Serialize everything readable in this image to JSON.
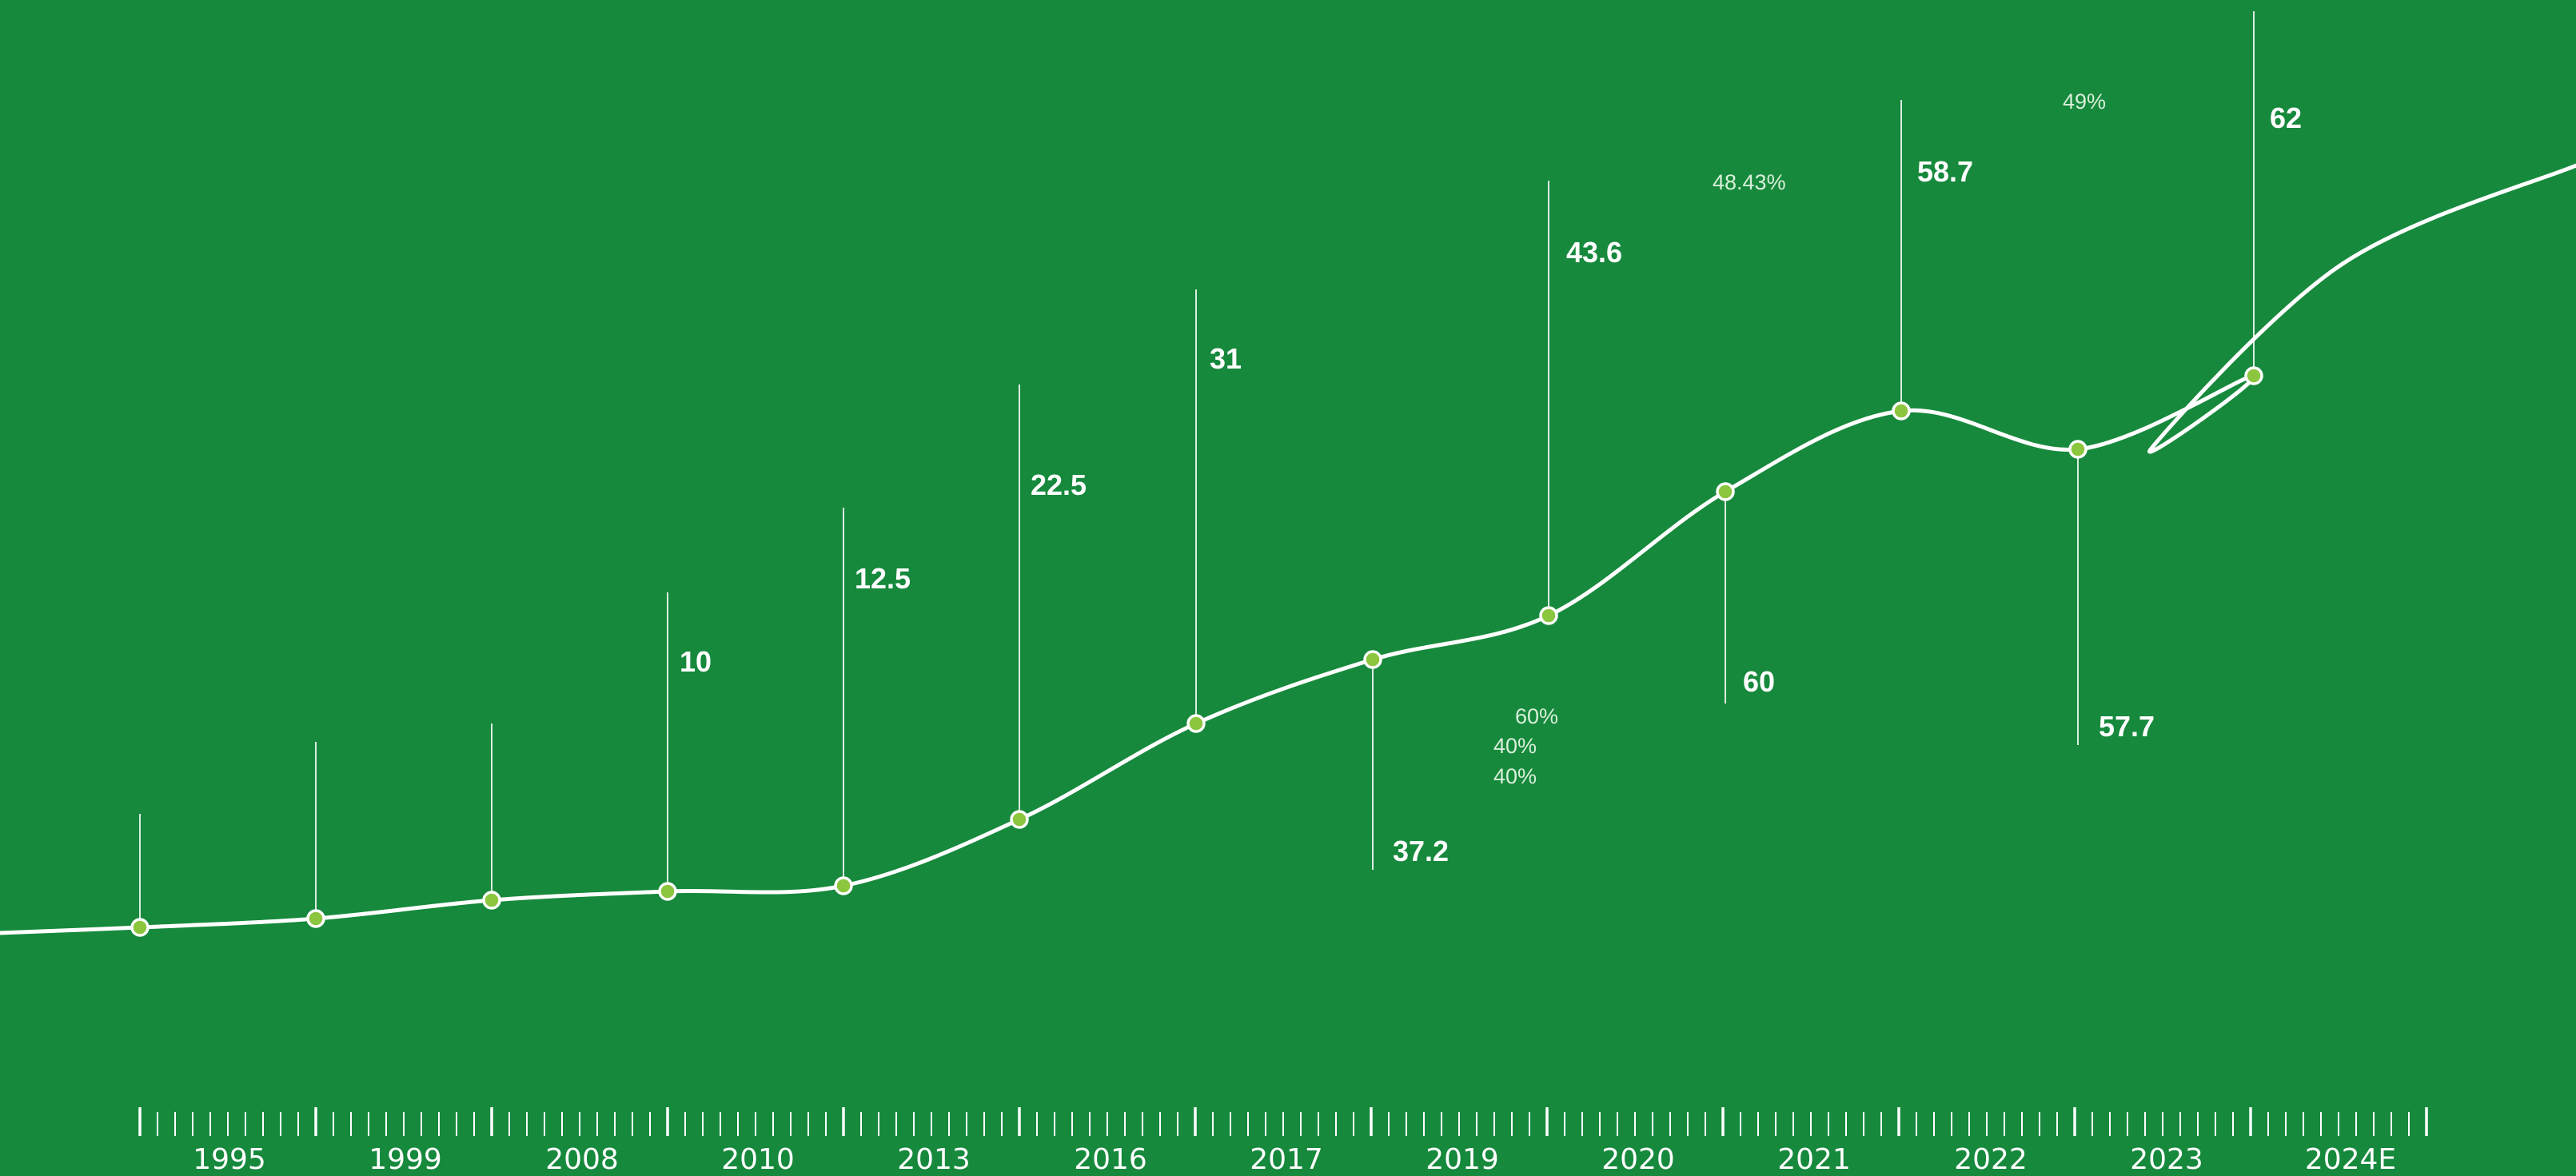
{
  "chart_data": {
    "type": "line",
    "title": "",
    "xlabel": "",
    "ylabel": "",
    "grid": false,
    "legend": false,
    "categories": [
      "1995",
      "1999",
      "2008",
      "2010",
      "2013",
      "2016",
      "2017",
      "2019",
      "2020",
      "2021",
      "2022",
      "2023",
      "2024E"
    ],
    "series": [
      {
        "values": [
          2,
          4,
          6.5,
          10,
          12.5,
          22.5,
          31,
          37.2,
          43.6,
          60,
          58.7,
          57.7,
          62
        ]
      }
    ],
    "value_labels": [
      "",
      "",
      "",
      "10",
      "12.5",
      "22.5",
      "31",
      "37.2",
      "43.6",
      "60",
      "58.7",
      "57.7",
      "62"
    ],
    "annotations": [
      {
        "text": "60%",
        "near": "2019"
      },
      {
        "text": "40%",
        "near": "2019"
      },
      {
        "text": "40%",
        "near": "2019"
      },
      {
        "text": "48.43%",
        "near": "2020"
      },
      {
        "text": "49%",
        "near": "2022"
      }
    ],
    "colors": {
      "background": "#16893c",
      "line": "#ffffff",
      "marker_fill": "#8cc63f",
      "marker_stroke": "#ffffff",
      "text": "#ffffff",
      "annotation_text": "#d9efd9"
    }
  }
}
